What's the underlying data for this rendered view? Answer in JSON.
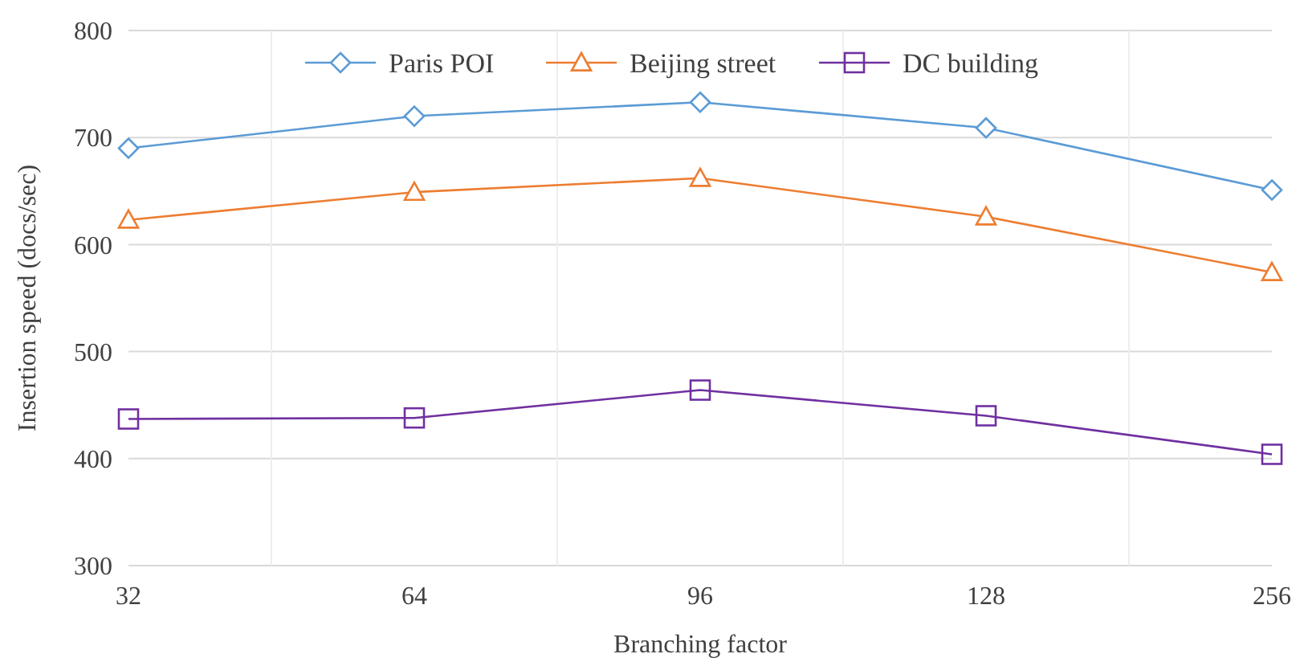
{
  "chart_data": {
    "type": "line",
    "xlabel": "Branching factor",
    "ylabel": "Insertion speed (docs/sec)",
    "categories": [
      "32",
      "64",
      "96",
      "128",
      "256"
    ],
    "series": [
      {
        "name": "Paris POI",
        "color": "#5b9bd5",
        "marker": "diamond",
        "values": [
          690,
          720,
          733,
          709,
          651
        ]
      },
      {
        "name": "Beijing street",
        "color": "#ed7d31",
        "marker": "triangle",
        "values": [
          623,
          649,
          662,
          626,
          574
        ]
      },
      {
        "name": "DC building",
        "color": "#7030a0",
        "marker": "square",
        "values": [
          437,
          438,
          464,
          440,
          404
        ]
      }
    ],
    "ylim": [
      300,
      800
    ],
    "yticks": [
      300,
      400,
      500,
      600,
      700,
      800
    ],
    "grid": true,
    "legend": "top",
    "line_style": "solid"
  }
}
